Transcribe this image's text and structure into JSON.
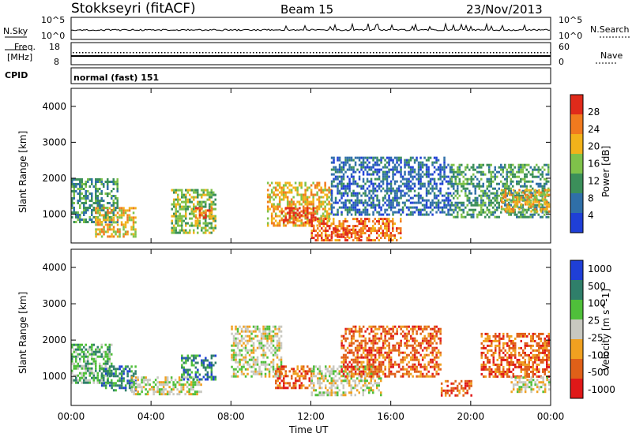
{
  "header": {
    "station": "Stokkseyri (fitACF)",
    "beam": "Beam 15",
    "date": "23/Nov/2013"
  },
  "upper_panels": {
    "nsky_label": "N.Sky",
    "nsky_ticks": [
      "10^5",
      "10^0"
    ],
    "nsearch_label": "N.Search",
    "nsearch_ticks": [
      "10^5",
      "10^0"
    ],
    "freq_label": "Freq.",
    "freq_unit": "[MHz]",
    "freq_ticks": [
      "18",
      "8"
    ],
    "nave_label": "Nave",
    "nave_ticks": [
      "60",
      "0"
    ],
    "cpid_label": "CPID",
    "cpid_value": "normal (fast) 151"
  },
  "colors": {
    "power": [
      "#1f3fd6",
      "#2f6fa8",
      "#3b8f5a",
      "#7fc24a",
      "#f2b21a",
      "#f07a1e",
      "#e02a1a"
    ],
    "velocity": [
      "#1f3fd6",
      "#2f7f6a",
      "#4fbf3a",
      "#c8c8c0",
      "#f0a020",
      "#e06018",
      "#e01818"
    ]
  },
  "chart_data": [
    {
      "type": "heatmap",
      "quantity": "power",
      "ylabel": "Slant Range [km]",
      "ylim": [
        200,
        4500
      ],
      "yticks": [
        "1000",
        "2000",
        "3000",
        "4000"
      ],
      "xlim": [
        "00:00",
        "24:00"
      ],
      "colorbar_label": "Power [dB]",
      "colorbar_ticks": [
        "4",
        "8",
        "12",
        "16",
        "20",
        "24",
        "28"
      ],
      "colorbar_range": [
        0,
        32
      ],
      "patches": [
        {
          "t0": 0.0,
          "t1": 2.3,
          "r0": 800,
          "r1": 2000,
          "level": 2
        },
        {
          "t0": 1.2,
          "t1": 3.2,
          "r0": 400,
          "r1": 1200,
          "level": 4
        },
        {
          "t0": 5.0,
          "t1": 7.2,
          "r0": 500,
          "r1": 1700,
          "level": 3
        },
        {
          "t0": 6.2,
          "t1": 7.0,
          "r0": 900,
          "r1": 1200,
          "level": 5
        },
        {
          "t0": 9.8,
          "t1": 13.0,
          "r0": 700,
          "r1": 1900,
          "level": 4
        },
        {
          "t0": 10.5,
          "t1": 12.2,
          "r0": 750,
          "r1": 1200,
          "level": 6
        },
        {
          "t0": 12.0,
          "t1": 16.5,
          "r0": 300,
          "r1": 900,
          "level": 5
        },
        {
          "t0": 13.0,
          "t1": 14.5,
          "r0": 400,
          "r1": 600,
          "level": 6
        },
        {
          "t0": 13.0,
          "t1": 19.0,
          "r0": 1000,
          "r1": 2600,
          "level": 1
        },
        {
          "t0": 19.0,
          "t1": 23.9,
          "r0": 900,
          "r1": 2400,
          "level": 2
        },
        {
          "t0": 21.5,
          "t1": 23.9,
          "r0": 1100,
          "r1": 1700,
          "level": 4
        }
      ]
    },
    {
      "type": "heatmap",
      "quantity": "velocity",
      "ylabel": "Slant Range [km]",
      "ylim": [
        200,
        4500
      ],
      "yticks": [
        "1000",
        "2000",
        "3000",
        "4000"
      ],
      "xlim": [
        "00:00",
        "24:00"
      ],
      "xticks": [
        "00:00",
        "04:00",
        "08:00",
        "12:00",
        "16:00",
        "20:00",
        "00:00"
      ],
      "xlabel": "Time UT",
      "colorbar_label": "Velocity [m s^-1]",
      "colorbar_ticks": [
        "1000",
        "500",
        "100",
        "25",
        "-25",
        "-100",
        "-500",
        "-1000"
      ],
      "patches": [
        {
          "t0": 0.0,
          "t1": 2.0,
          "r0": 800,
          "r1": 1900,
          "level": 2
        },
        {
          "t0": 1.5,
          "t1": 3.2,
          "r0": 600,
          "r1": 1300,
          "level": 1
        },
        {
          "t0": 3.0,
          "t1": 6.5,
          "r0": 500,
          "r1": 1000,
          "level": 3
        },
        {
          "t0": 5.5,
          "t1": 7.2,
          "r0": 900,
          "r1": 1600,
          "level": 1
        },
        {
          "t0": 8.0,
          "t1": 10.5,
          "r0": 1000,
          "r1": 2400,
          "level": 3
        },
        {
          "t0": 10.2,
          "t1": 12.0,
          "r0": 700,
          "r1": 1300,
          "level": 5
        },
        {
          "t0": 12.0,
          "t1": 15.5,
          "r0": 500,
          "r1": 1300,
          "level": 3
        },
        {
          "t0": 13.5,
          "t1": 18.5,
          "r0": 1000,
          "r1": 2400,
          "level": 5
        },
        {
          "t0": 18.5,
          "t1": 20.0,
          "r0": 500,
          "r1": 900,
          "level": 5
        },
        {
          "t0": 20.5,
          "t1": 23.9,
          "r0": 1000,
          "r1": 2200,
          "level": 5
        },
        {
          "t0": 22.0,
          "t1": 23.9,
          "r0": 600,
          "r1": 1000,
          "level": 3
        }
      ]
    }
  ]
}
